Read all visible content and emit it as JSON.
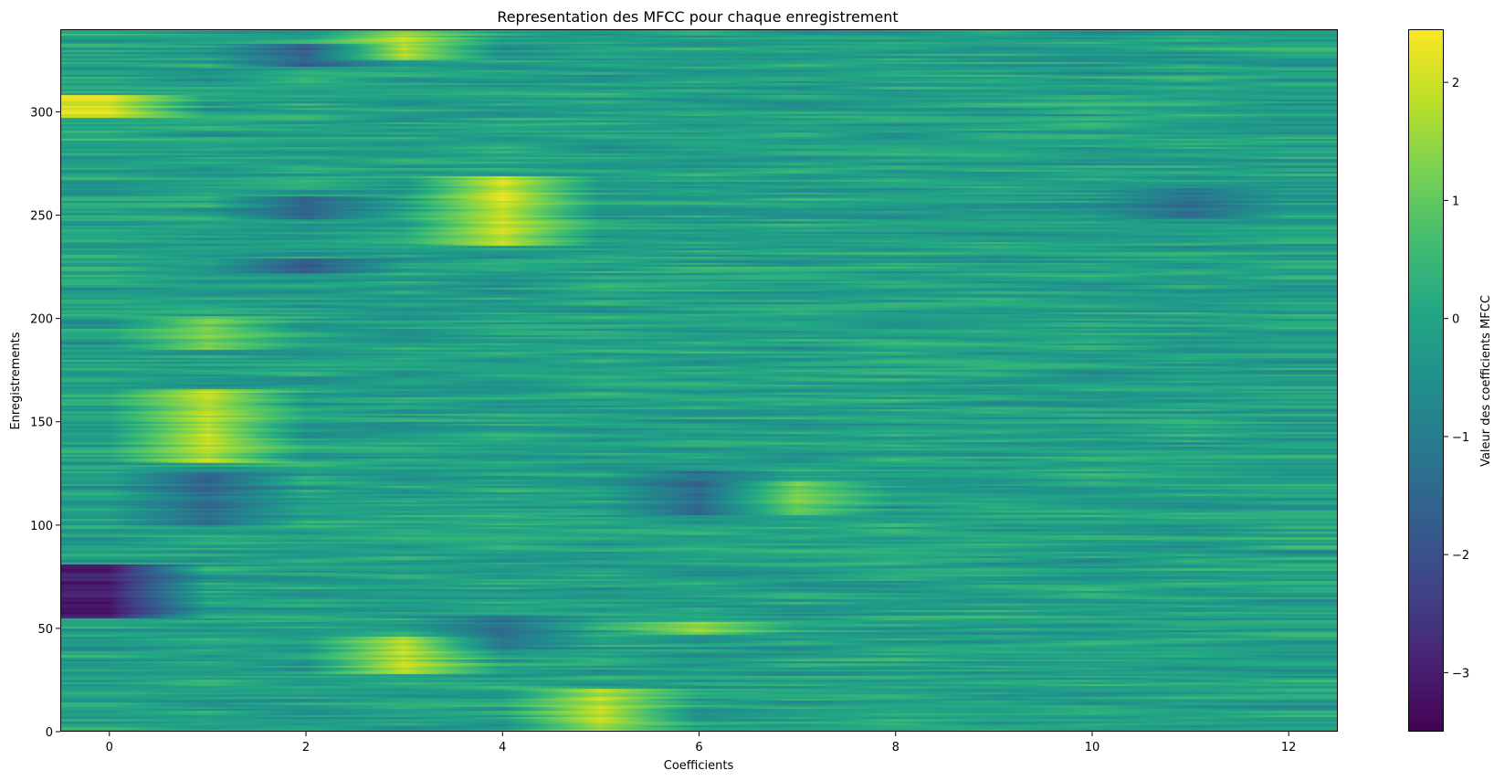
{
  "chart_data": {
    "type": "heatmap",
    "title": "Representation des MFCC pour chaque enregistrement",
    "xlabel": "Coefficients",
    "ylabel": "Enregistrements",
    "colorbar_label": "Valeur des coefficients MFCC",
    "colormap": "viridis",
    "x_range": [
      -0.5,
      12.5
    ],
    "y_range": [
      0,
      340
    ],
    "value_range": [
      -3.5,
      2.45
    ],
    "n_rows": 340,
    "n_coefficients": 13,
    "x_ticks": [
      0,
      2,
      4,
      6,
      8,
      10,
      12
    ],
    "x_tick_labels": [
      "0",
      "2",
      "4",
      "6",
      "8",
      "10",
      "12"
    ],
    "y_ticks": [
      0,
      50,
      100,
      150,
      200,
      250,
      300
    ],
    "y_tick_labels": [
      "0",
      "50",
      "100",
      "150",
      "200",
      "250",
      "300"
    ],
    "colorbar_ticks": [
      -3,
      -2,
      -1,
      0,
      1,
      2
    ],
    "colorbar_tick_labels": [
      "−3",
      "−2",
      "−1",
      "0",
      "1",
      "2"
    ],
    "grid": false,
    "approx_features": [
      {
        "row_start": 297,
        "row_end": 307,
        "coefficient": 0,
        "value": 2.0
      },
      {
        "row_start": 325,
        "row_end": 338,
        "coefficient": 3,
        "value": 1.8
      },
      {
        "row_start": 235,
        "row_end": 268,
        "coefficient": 4,
        "value": 2.0
      },
      {
        "row_start": 130,
        "row_end": 165,
        "coefficient": 1,
        "value": 1.8
      },
      {
        "row_start": 185,
        "row_end": 200,
        "coefficient": 1,
        "value": 1.2
      },
      {
        "row_start": 28,
        "row_end": 45,
        "coefficient": 3,
        "value": 1.9
      },
      {
        "row_start": 0,
        "row_end": 20,
        "coefficient": 5,
        "value": 1.8
      },
      {
        "row_start": 47,
        "row_end": 52,
        "coefficient": 6,
        "value": 1.5
      },
      {
        "row_start": 105,
        "row_end": 120,
        "coefficient": 7,
        "value": 1.2
      },
      {
        "row_start": 55,
        "row_end": 80,
        "coefficient": 0,
        "value": -3.0
      },
      {
        "row_start": 248,
        "row_end": 258,
        "coefficient": 2,
        "value": -1.7
      },
      {
        "row_start": 322,
        "row_end": 332,
        "coefficient": 2,
        "value": -1.7
      },
      {
        "row_start": 222,
        "row_end": 228,
        "coefficient": 2,
        "value": -1.8
      },
      {
        "row_start": 248,
        "row_end": 262,
        "coefficient": 11,
        "value": -1.3
      },
      {
        "row_start": 100,
        "row_end": 125,
        "coefficient": 1,
        "value": -1.4
      },
      {
        "row_start": 105,
        "row_end": 125,
        "coefficient": 6,
        "value": -1.4
      },
      {
        "row_start": 40,
        "row_end": 55,
        "coefficient": 4,
        "value": -1.3
      }
    ]
  }
}
